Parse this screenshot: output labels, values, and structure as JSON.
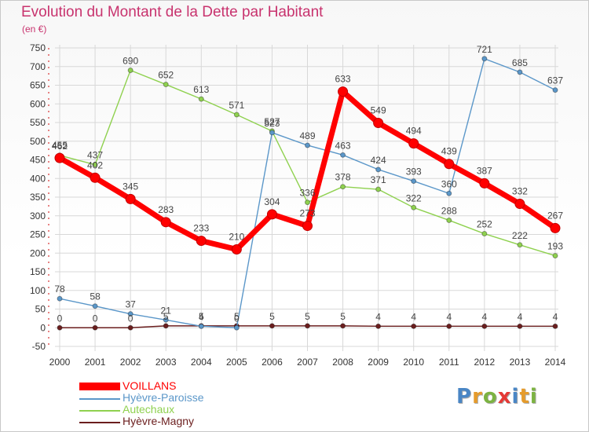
{
  "title": "Evolution du Montant de la Dette par Habitant",
  "subtitle": "(en €)",
  "logo": {
    "letters": [
      "P",
      "r",
      "o",
      "x",
      "i",
      "t",
      "i"
    ],
    "colors": [
      "#4a86c5",
      "#e59b2c",
      "#7cb342",
      "#e53935",
      "#4a86c5",
      "#e59b2c",
      "#7cb342"
    ]
  },
  "chart_data": {
    "type": "line",
    "x": [
      2000,
      2001,
      2002,
      2003,
      2004,
      2005,
      2006,
      2007,
      2008,
      2009,
      2010,
      2011,
      2012,
      2013,
      2014
    ],
    "ylim": [
      -50,
      750
    ],
    "yticks": [
      -50,
      0,
      50,
      100,
      150,
      200,
      250,
      300,
      350,
      400,
      450,
      500,
      550,
      600,
      650,
      700,
      750
    ],
    "grid": true,
    "legend_position": "bottom-left",
    "series": [
      {
        "name": "Hyèvre-Magny",
        "color": "#6b1e1e",
        "values": [
          0,
          0,
          0,
          5,
          5,
          5,
          5,
          5,
          5,
          4,
          4,
          4,
          4,
          4,
          4
        ],
        "labels": [
          "0",
          "0",
          "0",
          "5",
          "5",
          "5",
          "5",
          "5",
          "5",
          "4",
          "4",
          "4",
          "4",
          "4",
          "4"
        ]
      },
      {
        "name": "Autechaux",
        "color": "#8fd14f",
        "values": [
          462,
          437,
          690,
          652,
          613,
          571,
          527,
          336,
          378,
          371,
          322,
          288,
          252,
          222,
          193
        ],
        "labels": [
          "462",
          "437",
          "690",
          "652",
          "613",
          "571",
          "527",
          "336",
          "378",
          "371",
          "322",
          "288",
          "252",
          "222",
          "193"
        ]
      },
      {
        "name": "Hyèvre-Paroisse",
        "color": "#5b97c9",
        "values": [
          78,
          58,
          37,
          21,
          4,
          0,
          523,
          489,
          463,
          424,
          393,
          360,
          721,
          685,
          637
        ],
        "labels": [
          "78",
          "58",
          "37",
          "21",
          "4",
          "0",
          "523",
          "489",
          "463",
          "424",
          "393",
          "360",
          "721",
          "685",
          "637"
        ]
      },
      {
        "name": "VOILLANS",
        "color": "#ff0000",
        "values": [
          455,
          402,
          345,
          283,
          233,
          210,
          304,
          273,
          633,
          549,
          494,
          439,
          387,
          332,
          267
        ],
        "labels": [
          "455",
          "402",
          "345",
          "283",
          "233",
          "210",
          "304",
          "273",
          "633",
          "549",
          "494",
          "439",
          "387",
          "332",
          "267"
        ]
      }
    ]
  },
  "legend": [
    {
      "label": "VOILLANS",
      "color": "#ff0000",
      "thick": true
    },
    {
      "label": "Hyèvre-Paroisse",
      "color": "#5b97c9",
      "thick": false
    },
    {
      "label": "Autechaux",
      "color": "#8fd14f",
      "thick": false
    },
    {
      "label": "Hyèvre-Magny",
      "color": "#6b1e1e",
      "thick": false
    }
  ]
}
